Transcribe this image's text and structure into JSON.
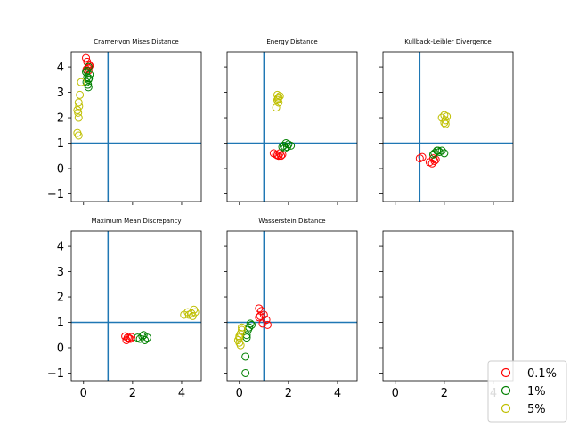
{
  "chart_data": {
    "type": "scatter",
    "colors": {
      "0.1%": "#ff0000",
      "1%": "#008000",
      "5%": "#bfbf00",
      "refline": "#1f77b4"
    },
    "xlim": [
      -0.5,
      4.8
    ],
    "ylim": [
      -1.3,
      4.6
    ],
    "xticks": [
      0,
      2,
      4
    ],
    "yticks": [
      -1,
      0,
      1,
      2,
      3,
      4
    ],
    "reference_lines": {
      "x": 1,
      "y": 1
    },
    "legend": {
      "placement": "lower-right",
      "entries": [
        "0.1%",
        "1%",
        "5%"
      ]
    },
    "panels": [
      {
        "title": "Cramer-von Mises Distance",
        "series": [
          {
            "name": "0.1%",
            "points": [
              [
                0.1,
                4.35
              ],
              [
                0.15,
                4.2
              ],
              [
                0.2,
                4.1
              ],
              [
                0.25,
                4.05
              ],
              [
                0.18,
                3.95
              ],
              [
                0.22,
                4.0
              ],
              [
                0.12,
                3.9
              ],
              [
                0.2,
                3.85
              ]
            ]
          },
          {
            "name": "1%",
            "points": [
              [
                0.1,
                3.8
              ],
              [
                0.15,
                3.6
              ],
              [
                0.2,
                3.5
              ],
              [
                0.12,
                3.4
              ],
              [
                0.18,
                3.3
              ],
              [
                0.2,
                3.2
              ],
              [
                0.25,
                3.7
              ],
              [
                0.22,
                3.55
              ],
              [
                0.14,
                3.85
              ],
              [
                0.2,
                4.0
              ]
            ]
          },
          {
            "name": "5%",
            "points": [
              [
                -0.15,
                2.9
              ],
              [
                -0.2,
                2.6
              ],
              [
                -0.18,
                2.45
              ],
              [
                -0.25,
                2.3
              ],
              [
                -0.22,
                2.2
              ],
              [
                -0.2,
                2.0
              ],
              [
                -0.25,
                1.4
              ],
              [
                -0.2,
                1.3
              ],
              [
                -0.1,
                3.4
              ]
            ]
          }
        ]
      },
      {
        "title": "Energy Distance",
        "series": [
          {
            "name": "0.1%",
            "points": [
              [
                1.4,
                0.6
              ],
              [
                1.5,
                0.55
              ],
              [
                1.6,
                0.5
              ],
              [
                1.7,
                0.5
              ],
              [
                1.75,
                0.55
              ],
              [
                1.65,
                0.6
              ],
              [
                1.55,
                0.52
              ]
            ]
          },
          {
            "name": "1%",
            "points": [
              [
                1.8,
                0.9
              ],
              [
                1.9,
                1.0
              ],
              [
                1.95,
                0.85
              ],
              [
                2.0,
                0.95
              ],
              [
                2.1,
                0.9
              ],
              [
                1.85,
                0.8
              ],
              [
                1.75,
                0.85
              ]
            ]
          },
          {
            "name": "5%",
            "points": [
              [
                1.55,
                2.9
              ],
              [
                1.6,
                2.8
              ],
              [
                1.65,
                2.85
              ],
              [
                1.55,
                2.7
              ],
              [
                1.6,
                2.6
              ],
              [
                1.5,
                2.4
              ],
              [
                1.58,
                2.75
              ]
            ]
          }
        ]
      },
      {
        "title": "Kullback-Leibler Divergence",
        "series": [
          {
            "name": "0.1%",
            "points": [
              [
                1.0,
                0.4
              ],
              [
                1.1,
                0.45
              ],
              [
                1.4,
                0.25
              ],
              [
                1.5,
                0.2
              ],
              [
                1.6,
                0.3
              ],
              [
                1.65,
                0.35
              ],
              [
                1.55,
                0.4
              ]
            ]
          },
          {
            "name": "1%",
            "points": [
              [
                1.6,
                0.6
              ],
              [
                1.7,
                0.7
              ],
              [
                1.8,
                0.65
              ],
              [
                1.9,
                0.7
              ],
              [
                2.0,
                0.6
              ],
              [
                1.55,
                0.55
              ],
              [
                1.75,
                0.7
              ]
            ]
          },
          {
            "name": "5%",
            "points": [
              [
                1.9,
                2.0
              ],
              [
                2.0,
                2.1
              ],
              [
                2.05,
                1.9
              ],
              [
                2.1,
                2.05
              ],
              [
                2.0,
                1.8
              ],
              [
                2.05,
                1.75
              ]
            ]
          }
        ]
      },
      {
        "title": "Maximum Mean Discrepancy",
        "series": [
          {
            "name": "0.1%",
            "points": [
              [
                1.7,
                0.45
              ],
              [
                1.8,
                0.4
              ],
              [
                1.9,
                0.35
              ],
              [
                1.75,
                0.3
              ],
              [
                1.85,
                0.38
              ],
              [
                1.95,
                0.42
              ]
            ]
          },
          {
            "name": "1%",
            "points": [
              [
                2.2,
                0.4
              ],
              [
                2.3,
                0.35
              ],
              [
                2.4,
                0.45
              ],
              [
                2.5,
                0.3
              ],
              [
                2.6,
                0.4
              ],
              [
                2.45,
                0.5
              ]
            ]
          },
          {
            "name": "5%",
            "points": [
              [
                4.1,
                1.3
              ],
              [
                4.25,
                1.4
              ],
              [
                4.4,
                1.35
              ],
              [
                4.5,
                1.5
              ],
              [
                4.55,
                1.4
              ],
              [
                4.3,
                1.3
              ],
              [
                4.45,
                1.25
              ]
            ]
          }
        ]
      },
      {
        "title": "Wasserstein Distance",
        "series": [
          {
            "name": "0.1%",
            "points": [
              [
                0.8,
                1.55
              ],
              [
                0.9,
                1.45
              ],
              [
                0.85,
                1.25
              ],
              [
                1.0,
                1.3
              ],
              [
                1.1,
                1.1
              ],
              [
                1.15,
                0.9
              ],
              [
                0.95,
                0.95
              ],
              [
                0.8,
                1.2
              ]
            ]
          },
          {
            "name": "1%",
            "points": [
              [
                0.3,
                0.5
              ],
              [
                0.35,
                0.7
              ],
              [
                0.4,
                0.8
              ],
              [
                0.5,
                0.9
              ],
              [
                0.3,
                0.4
              ],
              [
                0.25,
                -0.35
              ],
              [
                0.25,
                -1.0
              ],
              [
                0.45,
                0.95
              ]
            ]
          },
          {
            "name": "5%",
            "points": [
              [
                0.0,
                0.4
              ],
              [
                0.05,
                0.55
              ],
              [
                0.1,
                0.7
              ],
              [
                0.0,
                0.2
              ],
              [
                -0.05,
                0.3
              ],
              [
                0.05,
                0.1
              ],
              [
                0.1,
                0.8
              ],
              [
                0.0,
                0.45
              ]
            ]
          }
        ]
      },
      {
        "title": "",
        "series": []
      }
    ]
  }
}
